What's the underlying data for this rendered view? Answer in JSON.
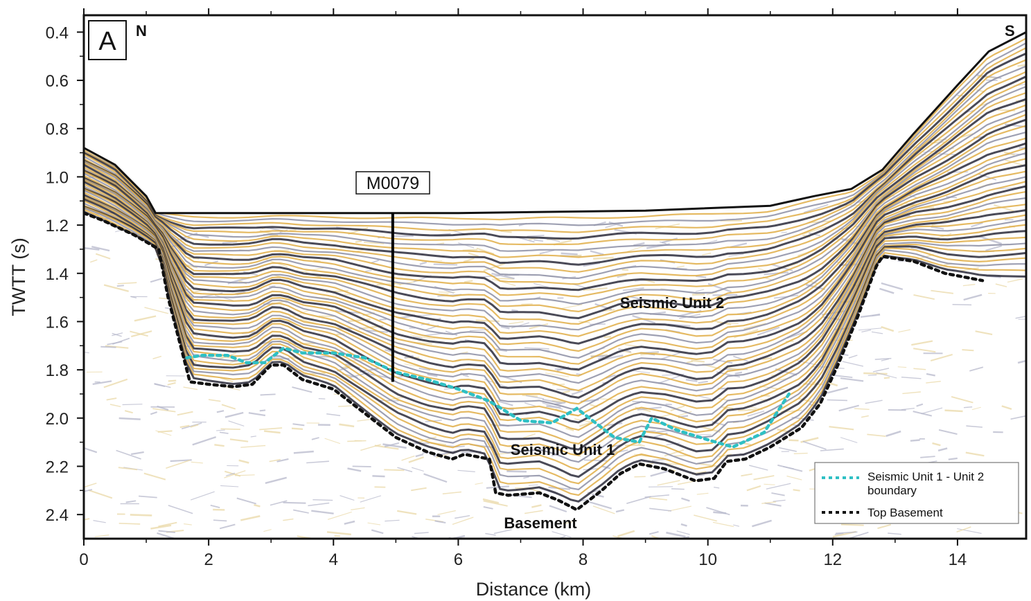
{
  "chart_data": {
    "type": "line",
    "panel_label": "A",
    "direction_left": "N",
    "direction_right": "S",
    "xlabel": "Distance (km)",
    "ylabel": "TWTT (s)",
    "xlim": [
      0,
      15.1
    ],
    "ylim": [
      2.5,
      0.33
    ],
    "x_ticks": [
      0,
      2,
      4,
      6,
      8,
      10,
      12,
      14
    ],
    "y_ticks": [
      0.4,
      0.6,
      0.8,
      1.0,
      1.2,
      1.4,
      1.6,
      1.8,
      2.0,
      2.2,
      2.4
    ],
    "x_tick_labels": [
      "0",
      "2",
      "4",
      "6",
      "8",
      "10",
      "12",
      "14"
    ],
    "y_tick_labels": [
      "0.4",
      "0.6",
      "0.8",
      "1.0",
      "1.2",
      "1.4",
      "1.6",
      "1.8",
      "2.0",
      "2.2",
      "2.4"
    ],
    "well": {
      "name": "M0079",
      "x": 4.95,
      "y_top": 1.15,
      "y_bottom": 1.85
    },
    "seafloor": {
      "x": [
        0,
        0.5,
        1.0,
        1.15,
        3,
        6,
        9,
        11,
        11.7,
        12.3,
        12.8,
        13.3,
        14,
        14.5,
        15.1
      ],
      "y": [
        0.88,
        0.95,
        1.08,
        1.15,
        1.15,
        1.15,
        1.14,
        1.12,
        1.08,
        1.05,
        0.97,
        0.82,
        0.62,
        0.48,
        0.4
      ]
    },
    "annotations": [
      "Seismic Unit 2",
      "Seismic Unit 1",
      "Basement"
    ],
    "series": [
      {
        "name": "Seismic Unit 1 - Unit 2 boundary",
        "style": "dotted",
        "color": "#2fc0c4",
        "x": [
          1.65,
          1.9,
          2.3,
          2.6,
          2.9,
          3.2,
          3.5,
          4.0,
          4.5,
          5.0,
          5.5,
          6.0,
          6.5,
          7.0,
          7.5,
          7.9,
          8.1,
          8.5,
          8.9,
          9.1,
          9.5,
          10.0,
          10.4,
          10.9,
          11.3
        ],
        "y": [
          1.75,
          1.74,
          1.74,
          1.77,
          1.77,
          1.71,
          1.73,
          1.73,
          1.75,
          1.81,
          1.84,
          1.88,
          1.93,
          2.01,
          2.02,
          1.96,
          2.0,
          2.08,
          2.1,
          2.0,
          2.05,
          2.09,
          2.12,
          2.06,
          1.9
        ]
      },
      {
        "name": "Top Basement",
        "style": "dotted",
        "color": "#111111",
        "x": [
          0,
          0.3,
          0.8,
          1.2,
          1.35,
          1.6,
          1.7,
          2.0,
          2.4,
          2.7,
          3.0,
          3.2,
          3.5,
          4.0,
          4.5,
          5.0,
          5.5,
          5.9,
          6.1,
          6.5,
          6.6,
          6.8,
          7.3,
          7.6,
          7.9,
          8.3,
          8.6,
          8.9,
          9.3,
          9.8,
          10.1,
          10.3,
          10.6,
          11.0,
          11.5,
          11.8,
          12.1,
          12.4,
          12.7,
          12.8,
          13.3,
          13.8,
          14.4
        ],
        "y": [
          1.15,
          1.18,
          1.24,
          1.3,
          1.5,
          1.75,
          1.85,
          1.86,
          1.87,
          1.86,
          1.78,
          1.78,
          1.84,
          1.88,
          1.98,
          2.08,
          2.14,
          2.17,
          2.15,
          2.17,
          2.31,
          2.32,
          2.31,
          2.34,
          2.38,
          2.3,
          2.23,
          2.19,
          2.21,
          2.26,
          2.25,
          2.18,
          2.17,
          2.12,
          2.04,
          1.94,
          1.77,
          1.58,
          1.37,
          1.33,
          1.35,
          1.4,
          1.43
        ]
      }
    ],
    "legend": {
      "position": "bottom-right",
      "entries": [
        {
          "lines": [
            "Seismic Unit 1 - Unit 2",
            "boundary"
          ],
          "color": "#2fc0c4"
        },
        {
          "lines": [
            "Top Basement"
          ],
          "color": "#111111"
        }
      ]
    },
    "colors": {
      "reflector_dark": "#2a2a3a",
      "reflector_gold": "#e0ae48",
      "reflector_gray": "#8d8fa5",
      "boundary": "#2fc0c4",
      "basement": "#111111"
    }
  }
}
